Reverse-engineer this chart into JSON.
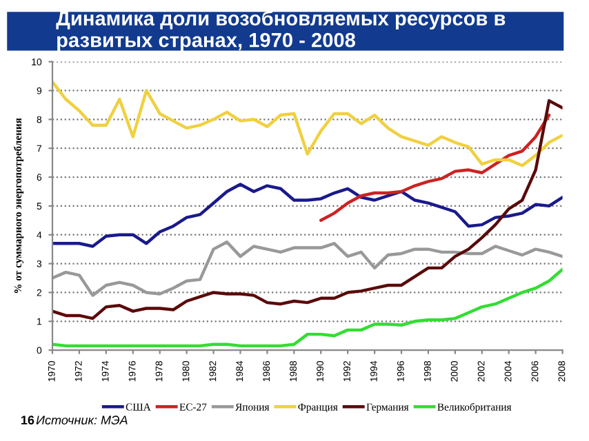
{
  "chart_data": {
    "type": "line",
    "title": "Динамика доли возобновляемых ресурсов в развитых странах, 1970 - 2008",
    "ylabel": "% от суммарного энергопотребления",
    "annotations": [
      "16",
      "Источник: МЭА"
    ],
    "x": [
      1970,
      1971,
      1972,
      1973,
      1974,
      1975,
      1976,
      1977,
      1978,
      1979,
      1980,
      1981,
      1982,
      1983,
      1984,
      1985,
      1986,
      1987,
      1988,
      1989,
      1990,
      1991,
      1992,
      1993,
      1994,
      1995,
      1996,
      1997,
      1998,
      1999,
      2000,
      2001,
      2002,
      2003,
      2004,
      2005,
      2006,
      2007,
      2008
    ],
    "series": [
      {
        "name": "США",
        "color": "#1a1a8c",
        "values": [
          3.7,
          3.7,
          3.7,
          3.6,
          3.95,
          4.0,
          4.0,
          3.7,
          4.1,
          4.3,
          4.6,
          4.7,
          5.1,
          5.5,
          5.75,
          5.5,
          5.7,
          5.6,
          5.2,
          5.2,
          5.25,
          5.45,
          5.6,
          5.3,
          5.2,
          5.35,
          5.5,
          5.2,
          5.1,
          4.95,
          4.8,
          4.3,
          4.35,
          4.6,
          4.65,
          4.75,
          5.05,
          5.0,
          5.3
        ]
      },
      {
        "name": "ЕС-27",
        "color": "#cc2222",
        "values": [
          null,
          null,
          null,
          null,
          null,
          null,
          null,
          null,
          null,
          null,
          null,
          null,
          null,
          null,
          null,
          null,
          null,
          null,
          null,
          null,
          4.5,
          4.75,
          5.1,
          5.35,
          5.45,
          5.45,
          5.5,
          5.7,
          5.85,
          5.95,
          6.2,
          6.25,
          6.15,
          6.45,
          6.75,
          6.9,
          7.4,
          8.15,
          null
        ]
      },
      {
        "name": "Япония",
        "color": "#999999",
        "values": [
          2.5,
          2.7,
          2.6,
          1.9,
          2.25,
          2.35,
          2.25,
          2.0,
          1.95,
          2.15,
          2.4,
          2.45,
          3.5,
          3.75,
          3.25,
          3.6,
          3.5,
          3.4,
          3.55,
          3.55,
          3.55,
          3.7,
          3.25,
          3.4,
          2.85,
          3.3,
          3.35,
          3.5,
          3.5,
          3.4,
          3.4,
          3.35,
          3.35,
          3.6,
          3.45,
          3.3,
          3.5,
          3.4,
          3.25
        ]
      },
      {
        "name": "Франция",
        "color": "#f0d040",
        "values": [
          9.3,
          8.7,
          8.3,
          7.8,
          7.8,
          8.7,
          7.4,
          9.0,
          8.2,
          7.95,
          7.7,
          7.8,
          8.0,
          8.25,
          7.95,
          8.0,
          7.75,
          8.15,
          8.2,
          6.8,
          7.6,
          8.2,
          8.2,
          7.85,
          8.15,
          7.7,
          7.4,
          7.25,
          7.1,
          7.4,
          7.2,
          7.05,
          6.45,
          6.6,
          6.6,
          6.4,
          6.75,
          7.2,
          7.45
        ]
      },
      {
        "name": "Германия",
        "color": "#5a0a0a",
        "values": [
          1.35,
          1.2,
          1.2,
          1.1,
          1.5,
          1.55,
          1.35,
          1.45,
          1.45,
          1.4,
          1.7,
          1.85,
          2.0,
          1.95,
          1.95,
          1.9,
          1.65,
          1.6,
          1.7,
          1.65,
          1.8,
          1.8,
          2.0,
          2.05,
          2.15,
          2.25,
          2.25,
          2.55,
          2.85,
          2.85,
          3.25,
          3.5,
          3.9,
          4.35,
          4.9,
          5.2,
          6.25,
          8.65,
          8.4
        ]
      },
      {
        "name": "Великобритания",
        "color": "#33dd33",
        "values": [
          0.2,
          0.15,
          0.15,
          0.15,
          0.15,
          0.15,
          0.15,
          0.15,
          0.15,
          0.15,
          0.15,
          0.15,
          0.2,
          0.2,
          0.15,
          0.15,
          0.15,
          0.15,
          0.2,
          0.55,
          0.55,
          0.5,
          0.7,
          0.7,
          0.9,
          0.9,
          0.87,
          1.0,
          1.05,
          1.05,
          1.1,
          1.3,
          1.5,
          1.6,
          1.8,
          2.0,
          2.15,
          2.4,
          2.8
        ]
      }
    ],
    "xlim": [
      1970,
      2008
    ],
    "xticks": [
      1970,
      1972,
      1974,
      1976,
      1978,
      1980,
      1982,
      1984,
      1986,
      1988,
      1990,
      1992,
      1994,
      1996,
      1998,
      2000,
      2002,
      2004,
      2006,
      2008
    ],
    "ylim": [
      0,
      10
    ],
    "yticks": [
      0,
      1,
      2,
      3,
      4,
      5,
      6,
      7,
      8,
      9,
      10
    ],
    "grid": "y",
    "legend": "bottom",
    "marker": "none",
    "line_style": "solid"
  }
}
